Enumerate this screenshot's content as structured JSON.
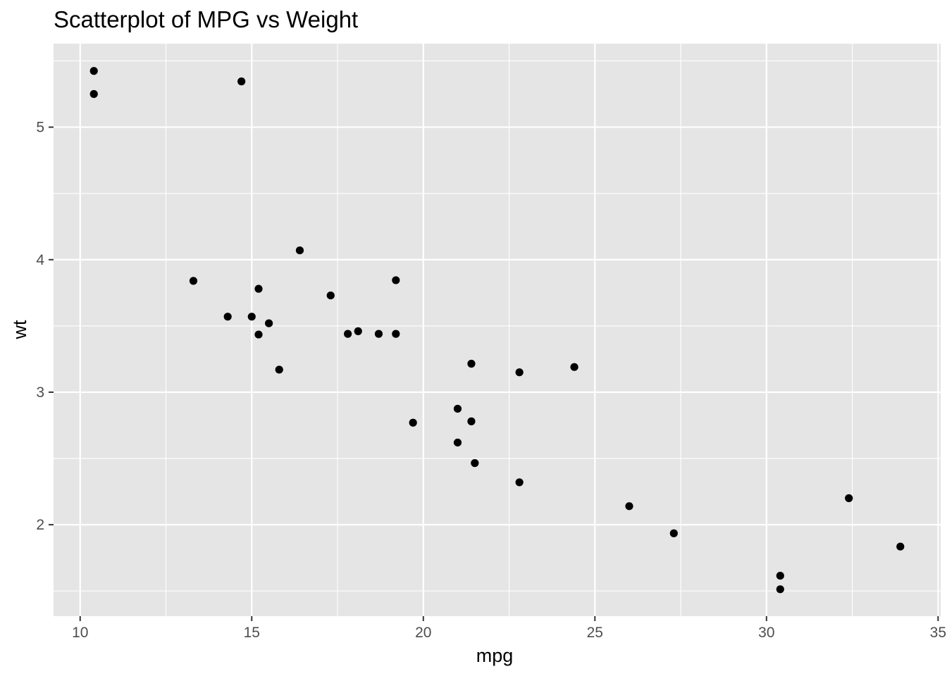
{
  "chart_data": {
    "type": "scatter",
    "title": "Scatterplot of MPG vs Weight",
    "xlabel": "mpg",
    "ylabel": "wt",
    "xlim": [
      9.225,
      35.075
    ],
    "ylim": [
      1.31,
      5.63
    ],
    "x_ticks": [
      10,
      15,
      20,
      25,
      30,
      35
    ],
    "x_tick_labels": [
      "10",
      "15",
      "20",
      "25",
      "30",
      "35"
    ],
    "y_ticks": [
      2,
      3,
      4,
      5
    ],
    "y_tick_labels": [
      "2",
      "3",
      "4",
      "5"
    ],
    "grid": true,
    "legend": "none",
    "colors": {
      "panel": "#e5e5e5",
      "grid": "#ffffff",
      "point": "#000000",
      "tick": "#333333"
    },
    "points": [
      {
        "x": 21.0,
        "y": 2.62
      },
      {
        "x": 21.0,
        "y": 2.875
      },
      {
        "x": 22.8,
        "y": 2.32
      },
      {
        "x": 21.4,
        "y": 3.215
      },
      {
        "x": 18.7,
        "y": 3.44
      },
      {
        "x": 18.1,
        "y": 3.46
      },
      {
        "x": 14.3,
        "y": 3.57
      },
      {
        "x": 24.4,
        "y": 3.19
      },
      {
        "x": 22.8,
        "y": 3.15
      },
      {
        "x": 19.2,
        "y": 3.44
      },
      {
        "x": 17.8,
        "y": 3.44
      },
      {
        "x": 16.4,
        "y": 4.07
      },
      {
        "x": 17.3,
        "y": 3.73
      },
      {
        "x": 15.2,
        "y": 3.78
      },
      {
        "x": 10.4,
        "y": 5.25
      },
      {
        "x": 10.4,
        "y": 5.424
      },
      {
        "x": 14.7,
        "y": 5.345
      },
      {
        "x": 32.4,
        "y": 2.2
      },
      {
        "x": 30.4,
        "y": 1.615
      },
      {
        "x": 33.9,
        "y": 1.835
      },
      {
        "x": 21.5,
        "y": 2.465
      },
      {
        "x": 15.5,
        "y": 3.52
      },
      {
        "x": 15.2,
        "y": 3.435
      },
      {
        "x": 13.3,
        "y": 3.84
      },
      {
        "x": 19.2,
        "y": 3.845
      },
      {
        "x": 27.3,
        "y": 1.935
      },
      {
        "x": 26.0,
        "y": 2.14
      },
      {
        "x": 30.4,
        "y": 1.513
      },
      {
        "x": 15.8,
        "y": 3.17
      },
      {
        "x": 19.7,
        "y": 2.77
      },
      {
        "x": 15.0,
        "y": 3.57
      },
      {
        "x": 21.4,
        "y": 2.78
      }
    ]
  }
}
